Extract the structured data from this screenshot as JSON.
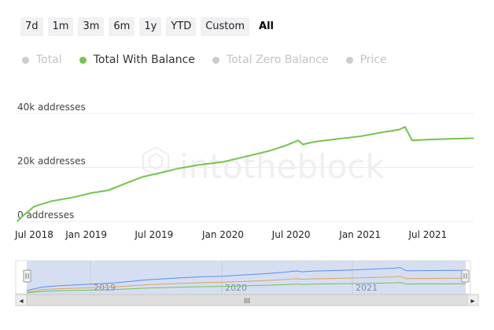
{
  "range_buttons": [
    {
      "label": "7d"
    },
    {
      "label": "1m"
    },
    {
      "label": "3m"
    },
    {
      "label": "6m"
    },
    {
      "label": "1y"
    },
    {
      "label": "YTD"
    },
    {
      "label": "Custom"
    },
    {
      "label": "All",
      "active": true
    }
  ],
  "legend": [
    {
      "label": "Total",
      "active": false
    },
    {
      "label": "Total With Balance",
      "active": true,
      "color": "#74c44d"
    },
    {
      "label": "Total Zero Balance",
      "active": false
    },
    {
      "label": "Price",
      "active": false
    }
  ],
  "watermark": "intotheblock",
  "colors": {
    "series_line": "#74c44d",
    "navigator_total": "#5b8def",
    "navigator_zero": "#e0a45a",
    "navigator_with_balance": "#74c44d",
    "navigator_fill": "#d6def2",
    "gridline": "#ececec"
  },
  "chart_data": {
    "type": "line",
    "series": [
      {
        "name": "Total With Balance",
        "x": [
          "2018-07-01",
          "2018-07-20",
          "2018-08-15",
          "2018-10-01",
          "2018-12-01",
          "2019-01-15",
          "2019-03-01",
          "2019-04-15",
          "2019-06-01",
          "2019-07-20",
          "2019-09-01",
          "2019-11-01",
          "2020-01-01",
          "2020-03-01",
          "2020-05-01",
          "2020-06-15",
          "2020-07-20",
          "2020-08-01",
          "2020-09-01",
          "2020-11-01",
          "2021-01-01",
          "2021-03-01",
          "2021-04-15",
          "2021-05-01",
          "2021-05-20",
          "2021-07-01",
          "2021-09-01",
          "2021-10-31"
        ],
        "y": [
          0,
          2500,
          5500,
          7500,
          9000,
          10500,
          11500,
          14000,
          16500,
          18000,
          19500,
          21000,
          22000,
          24000,
          26000,
          28000,
          30000,
          28500,
          29500,
          30500,
          31500,
          33000,
          34000,
          35000,
          30000,
          30300,
          30600,
          30800
        ]
      }
    ],
    "ylim": [
      0,
      40000
    ],
    "yticks": [
      {
        "value": 0,
        "label": "0 addresses"
      },
      {
        "value": 20000,
        "label": "20k addresses"
      },
      {
        "value": 40000,
        "label": "40k addresses"
      }
    ],
    "xticks": [
      {
        "date": "2018-07-01",
        "label": "Jul 2018"
      },
      {
        "date": "2019-01-01",
        "label": "Jan 2019"
      },
      {
        "date": "2019-07-01",
        "label": "Jul 2019"
      },
      {
        "date": "2020-01-01",
        "label": "Jan 2020"
      },
      {
        "date": "2020-07-01",
        "label": "Jul 2020"
      },
      {
        "date": "2021-01-01",
        "label": "Jan 2021"
      },
      {
        "date": "2021-07-01",
        "label": "Jul 2021"
      }
    ],
    "xlim": [
      "2018-07-01",
      "2021-10-31"
    ],
    "grid": true,
    "legend_position": "top-left"
  },
  "navigator": {
    "labels": [
      "2019",
      "2020",
      "2021"
    ],
    "scrollbar_grip": "III",
    "left_arrow": "◂",
    "right_arrow": "▸"
  }
}
